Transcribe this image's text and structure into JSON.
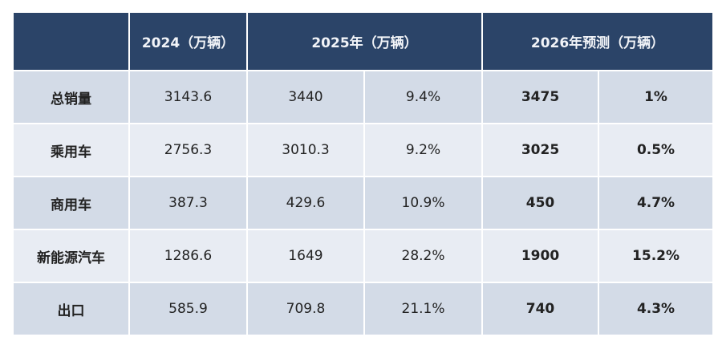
{
  "header": {
    "col_2024": "2024（万辆）",
    "col_2025": "2025年（万辆）",
    "col_2026": "2026年预测（万辆）"
  },
  "rows": [
    {
      "label": "总销量",
      "v2024": "3143.6",
      "v2025": "3440",
      "g2025": "9.4%",
      "v2026": "3475",
      "g2026": "1%"
    },
    {
      "label": "乘用车",
      "v2024": "2756.3",
      "v2025": "3010.3",
      "g2025": "9.2%",
      "v2026": "3025",
      "g2026": "0.5%"
    },
    {
      "label": "商用车",
      "v2024": "387.3",
      "v2025": "429.6",
      "g2025": "10.9%",
      "v2026": "450",
      "g2026": "4.7%"
    },
    {
      "label": "新能源汽车",
      "v2024": "1286.6",
      "v2025": "1649",
      "g2025": "28.2%",
      "v2026": "1900",
      "g2026": "15.2%"
    },
    {
      "label": "出口",
      "v2024": "585.9",
      "v2025": "709.8",
      "g2025": "21.1%",
      "v2026": "740",
      "g2026": "4.3%"
    }
  ],
  "colors": {
    "header_bg": "#2b4468",
    "row_dark": "#d3dbe7",
    "row_light": "#e8ecf3"
  }
}
